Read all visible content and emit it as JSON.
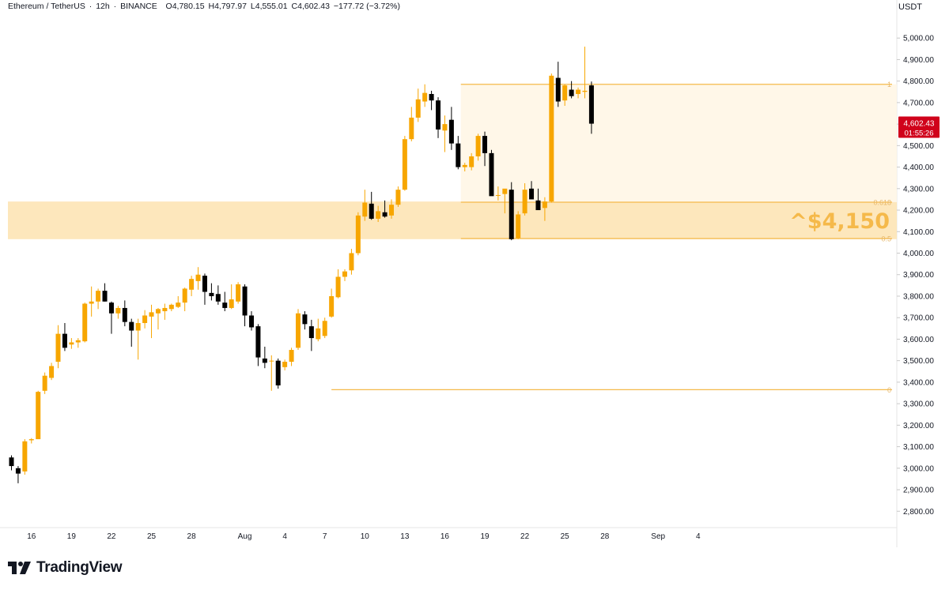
{
  "header": {
    "symbol": "Ethereum / TetherUS",
    "interval": "12h",
    "exchange": "BINANCE",
    "open": "O4,780.15",
    "high": "H4,797.97",
    "low": "L4,555.01",
    "close": "C4,602.43",
    "change": "−177.72 (−3.72%)"
  },
  "price_axis_unit": "USDT",
  "brand": "TradingView",
  "colors": {
    "up": "#f7a600",
    "down": "#000000",
    "fib": "#f5b94a",
    "zone": "#fde3b0",
    "price_tag": "#d0021b",
    "text": "#131722",
    "grid_text": "#555555"
  },
  "chart_data": {
    "type": "candlestick",
    "title": "",
    "xlabel": "",
    "ylabel": "",
    "ylim": [
      2700,
      5050
    ],
    "y_ticks": [
      2800,
      2900,
      3000,
      3100,
      3200,
      3300,
      3400,
      3500,
      3600,
      3700,
      3800,
      3900,
      4000,
      4100,
      4200,
      4300,
      4400,
      4500,
      4600,
      4700,
      4800,
      4900,
      5000
    ],
    "y_tick_labels": [
      "2,800.00",
      "2,900.00",
      "3,000.00",
      "3,100.00",
      "3,200.00",
      "3,300.00",
      "3,400.00",
      "3,500.00",
      "3,600.00",
      "3,700.00",
      "3,800.00",
      "3,900.00",
      "4,000.00",
      "4,100.00",
      "4,200.00",
      "4,300.00",
      "4,400.00",
      "4,500.00",
      "4,600.00",
      "4,700.00",
      "4,800.00",
      "4,900.00",
      "5,000.00"
    ],
    "x_ticks": [
      {
        "label": "16",
        "index": 3
      },
      {
        "label": "19",
        "index": 9
      },
      {
        "label": "22",
        "index": 15
      },
      {
        "label": "25",
        "index": 21
      },
      {
        "label": "28",
        "index": 27
      },
      {
        "label": "Aug",
        "index": 35
      },
      {
        "label": "4",
        "index": 41
      },
      {
        "label": "7",
        "index": 47
      },
      {
        "label": "10",
        "index": 53
      },
      {
        "label": "13",
        "index": 59
      },
      {
        "label": "16",
        "index": 65
      },
      {
        "label": "19",
        "index": 71
      },
      {
        "label": "22",
        "index": 77
      },
      {
        "label": "25",
        "index": 83
      },
      {
        "label": "28",
        "index": 89
      },
      {
        "label": "Sep",
        "index": 97
      },
      {
        "label": "4",
        "index": 103
      }
    ],
    "candles": [
      [
        3050,
        3060,
        2990,
        3010
      ],
      [
        3000,
        3010,
        2930,
        2975
      ],
      [
        2985,
        3135,
        2970,
        3125
      ],
      [
        3130,
        3140,
        3115,
        3135
      ],
      [
        3135,
        3360,
        3135,
        3355
      ],
      [
        3360,
        3445,
        3345,
        3430
      ],
      [
        3420,
        3490,
        3410,
        3475
      ],
      [
        3495,
        3665,
        3465,
        3625
      ],
      [
        3625,
        3675,
        3545,
        3560
      ],
      [
        3575,
        3605,
        3555,
        3585
      ],
      [
        3585,
        3605,
        3560,
        3595
      ],
      [
        3590,
        3770,
        3585,
        3765
      ],
      [
        3765,
        3845,
        3705,
        3775
      ],
      [
        3775,
        3835,
        3740,
        3825
      ],
      [
        3825,
        3860,
        3775,
        3775
      ],
      [
        3770,
        3775,
        3625,
        3720
      ],
      [
        3720,
        3755,
        3695,
        3745
      ],
      [
        3745,
        3780,
        3660,
        3680
      ],
      [
        3680,
        3695,
        3565,
        3640
      ],
      [
        3640,
        3695,
        3505,
        3675
      ],
      [
        3675,
        3735,
        3650,
        3710
      ],
      [
        3705,
        3760,
        3605,
        3725
      ],
      [
        3720,
        3745,
        3645,
        3740
      ],
      [
        3730,
        3765,
        3690,
        3745
      ],
      [
        3740,
        3765,
        3730,
        3760
      ],
      [
        3750,
        3800,
        3745,
        3770
      ],
      [
        3770,
        3840,
        3730,
        3835
      ],
      [
        3830,
        3895,
        3800,
        3880
      ],
      [
        3870,
        3935,
        3830,
        3900
      ],
      [
        3895,
        3905,
        3760,
        3820
      ],
      [
        3815,
        3860,
        3780,
        3800
      ],
      [
        3810,
        3850,
        3760,
        3775
      ],
      [
        3770,
        3820,
        3730,
        3745
      ],
      [
        3745,
        3855,
        3740,
        3785
      ],
      [
        3775,
        3865,
        3765,
        3855
      ],
      [
        3845,
        3855,
        3660,
        3710
      ],
      [
        3710,
        3730,
        3640,
        3655
      ],
      [
        3660,
        3670,
        3475,
        3515
      ],
      [
        3510,
        3565,
        3465,
        3490
      ],
      [
        3500,
        3525,
        3360,
        3500
      ],
      [
        3500,
        3510,
        3370,
        3385
      ],
      [
        3470,
        3505,
        3455,
        3495
      ],
      [
        3495,
        3560,
        3475,
        3550
      ],
      [
        3560,
        3740,
        3550,
        3720
      ],
      [
        3715,
        3730,
        3645,
        3670
      ],
      [
        3660,
        3690,
        3545,
        3605
      ],
      [
        3600,
        3695,
        3590,
        3650
      ],
      [
        3615,
        3700,
        3605,
        3685
      ],
      [
        3705,
        3835,
        3700,
        3800
      ],
      [
        3795,
        3925,
        3790,
        3890
      ],
      [
        3890,
        3925,
        3870,
        3915
      ],
      [
        3920,
        4020,
        3900,
        4000
      ],
      [
        4000,
        4190,
        3990,
        4175
      ],
      [
        4170,
        4295,
        4150,
        4235
      ],
      [
        4230,
        4285,
        4155,
        4160
      ],
      [
        4160,
        4220,
        4145,
        4195
      ],
      [
        4190,
        4245,
        4165,
        4170
      ],
      [
        4175,
        4250,
        4160,
        4225
      ],
      [
        4225,
        4310,
        4215,
        4295
      ],
      [
        4295,
        4545,
        4290,
        4530
      ],
      [
        4530,
        4680,
        4520,
        4630
      ],
      [
        4630,
        4765,
        4610,
        4715
      ],
      [
        4705,
        4785,
        4680,
        4745
      ],
      [
        4740,
        4755,
        4665,
        4710
      ],
      [
        4710,
        4725,
        4535,
        4575
      ],
      [
        4570,
        4640,
        4470,
        4600
      ],
      [
        4620,
        4680,
        4480,
        4510
      ],
      [
        4510,
        4545,
        4390,
        4400
      ],
      [
        4400,
        4420,
        4380,
        4410
      ],
      [
        4400,
        4465,
        4385,
        4450
      ],
      [
        4450,
        4555,
        4430,
        4545
      ],
      [
        4545,
        4565,
        4405,
        4465
      ],
      [
        4465,
        4480,
        4270,
        4265
      ],
      [
        4270,
        4310,
        4245,
        4270
      ],
      [
        4275,
        4285,
        4185,
        4300
      ],
      [
        4295,
        4330,
        4060,
        4065
      ],
      [
        4070,
        4195,
        4065,
        4180
      ],
      [
        4185,
        4325,
        4175,
        4295
      ],
      [
        4300,
        4335,
        4260,
        4250
      ],
      [
        4245,
        4300,
        4215,
        4200
      ],
      [
        4210,
        4260,
        4150,
        4240
      ],
      [
        4240,
        4835,
        4235,
        4825
      ],
      [
        4815,
        4890,
        4680,
        4705
      ],
      [
        4710,
        4785,
        4685,
        4780
      ],
      [
        4760,
        4800,
        4720,
        4730
      ],
      [
        4740,
        4770,
        4720,
        4760
      ],
      [
        4750,
        4960,
        4720,
        4755
      ],
      [
        4780,
        4798,
        4555,
        4602
      ]
    ],
    "fib_levels": [
      {
        "label": "1",
        "price": 4785,
        "start_index": 68
      },
      {
        "label": "0.618",
        "price": 4237,
        "start_index": 68
      },
      {
        "label": "0.5",
        "price": 4068,
        "start_index": 68
      },
      {
        "label": "0",
        "price": 3365,
        "start_index": 68
      }
    ],
    "zone": {
      "top": 4240,
      "bottom": 4065
    },
    "annotation": {
      "text": "^$4,150",
      "price": 4152
    },
    "last_price": {
      "label": "4,602.43",
      "timer": "01:55:26",
      "price": 4602.43
    }
  }
}
